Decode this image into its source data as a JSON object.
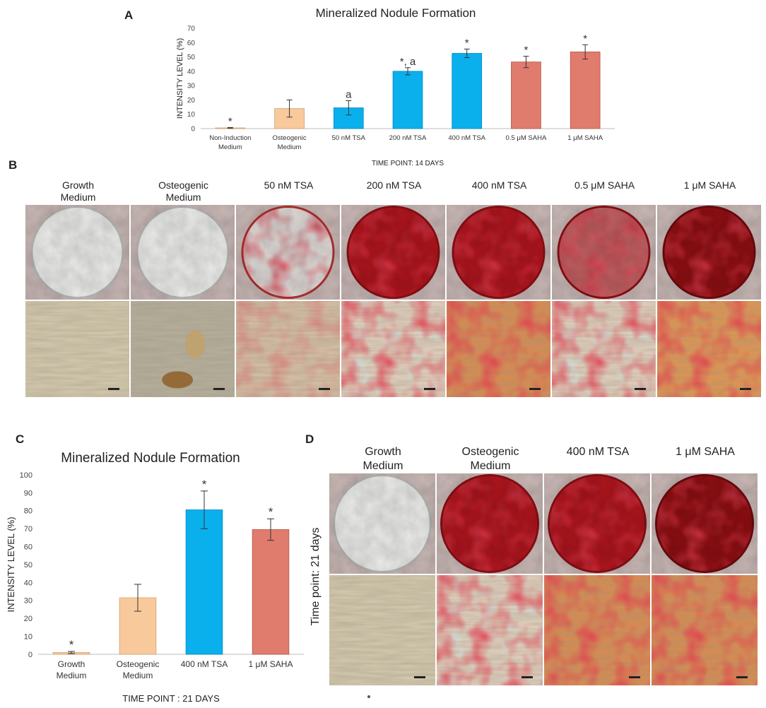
{
  "panels": {
    "A": {
      "letter": "A",
      "title": "Mineralized Nodule Formation",
      "ylabel": "INTENSITY LEVEL (%)",
      "xlabel": "TIME POINT: 14 DAYS"
    },
    "B": {
      "letter": "B",
      "columns": [
        "Growth\nMedium",
        "Osteogenic\nMedium",
        "50 nM TSA",
        "200 nM TSA",
        "400 nM TSA",
        "0.5 μM SAHA",
        "1 μM SAHA"
      ]
    },
    "C": {
      "letter": "C",
      "title": "Mineralized Nodule Formation",
      "ylabel": "INTENSITY LEVEL (%)",
      "xlabel": "TIME POINT : 21 DAYS"
    },
    "D": {
      "letter": "D",
      "columns": [
        "Growth\nMedium",
        "Osteogenic\nMedium",
        "400 nM TSA",
        "1 μM SAHA"
      ],
      "row_label": "Time point: 21 days"
    }
  },
  "chart_data": [
    {
      "type": "bar",
      "title": "Mineralized Nodule Formation",
      "xlabel": "TIME POINT: 14 DAYS",
      "ylabel": "INTENSITY LEVEL (%)",
      "categories": [
        "Non-Induction\nMedium",
        "Osteogenic\nMedium",
        "50 nM TSA",
        "200 nM TSA",
        "400 nM TSA",
        "0.5 μM SAHA",
        "1 μM SAHA"
      ],
      "values": [
        0.5,
        14,
        14.5,
        40,
        52.5,
        46.5,
        53.5
      ],
      "errors": [
        0.3,
        6,
        5,
        2.5,
        3,
        4,
        5
      ],
      "annotations": [
        "*",
        "",
        "a",
        "*, a",
        "*",
        "*",
        "*"
      ],
      "colors": [
        "#f8c99b",
        "#f8c99b",
        "#0ab0ec",
        "#0ab0ec",
        "#0ab0ec",
        "#e07c6e",
        "#e07c6e"
      ],
      "ylim": [
        0,
        70
      ],
      "yticks": [
        0,
        10,
        20,
        30,
        40,
        50,
        60,
        70
      ],
      "grid": false
    },
    {
      "type": "bar",
      "title": "Mineralized Nodule Formation",
      "xlabel": "TIME POINT : 21 DAYS",
      "ylabel": "INTENSITY LEVEL (%)",
      "categories": [
        "Growth\nMedium",
        "Osteogenic\nMedium",
        "400 nM TSA",
        "1 μM SAHA"
      ],
      "values": [
        1,
        31.5,
        80.5,
        69.5
      ],
      "errors": [
        0.6,
        7.5,
        10.5,
        6
      ],
      "annotations": [
        "*",
        "",
        "*",
        "*"
      ],
      "colors": [
        "#f8c99b",
        "#f8c99b",
        "#0ab0ec",
        "#e07c6e"
      ],
      "ylim": [
        0,
        100
      ],
      "yticks": [
        0,
        10,
        20,
        30,
        40,
        50,
        60,
        70,
        80,
        90,
        100
      ],
      "grid": false
    }
  ],
  "images": {
    "B_wells": [
      "well-light",
      "well-light",
      "well-speckled",
      "well-red",
      "well-red",
      "well-patchy",
      "well-dark"
    ],
    "B_micro": [
      "micro-plain",
      "micro-nodule",
      "micro-faint-red",
      "micro-red-blue",
      "micro-red-dense",
      "micro-red-blue",
      "micro-orange"
    ],
    "D_wells": [
      "well-light",
      "well-red",
      "well-red",
      "well-dark"
    ],
    "D_micro": [
      "micro-plain",
      "micro-red-blue",
      "micro-red-dense",
      "micro-red-dense"
    ]
  }
}
